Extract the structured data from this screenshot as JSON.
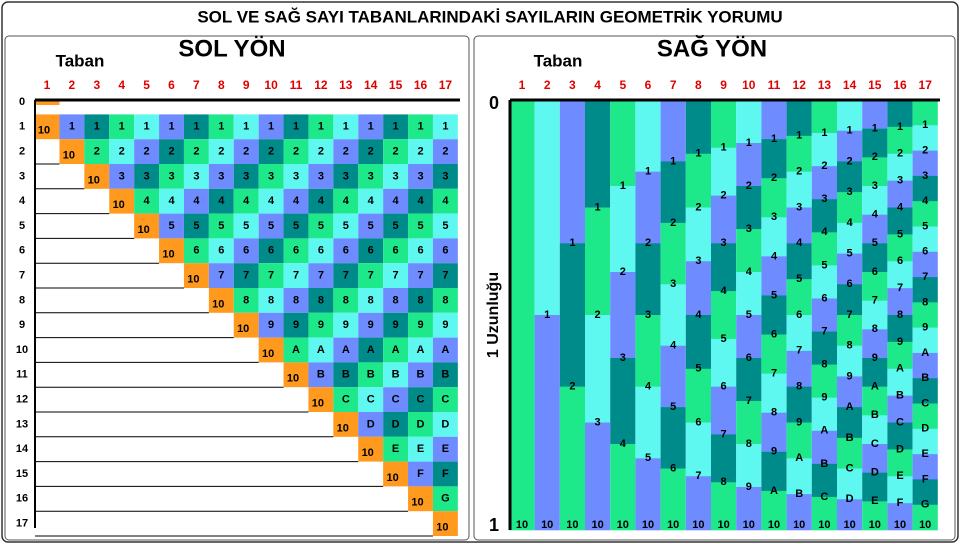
{
  "title": "SOL VE SAĞ SAYI TABANLARINDAKİ SAYILARIN GEOMETRİK YORUMU",
  "left": {
    "heading": "SOL YÖN",
    "base_label": "Taban",
    "columns": [
      "1",
      "2",
      "3",
      "4",
      "5",
      "6",
      "7",
      "8",
      "9",
      "10",
      "11",
      "12",
      "13",
      "14",
      "15",
      "16",
      "17"
    ],
    "rows": [
      {
        "label": "0",
        "cells": []
      },
      {
        "label": "1",
        "cells": [
          "10",
          "1",
          "1",
          "1",
          "1",
          "1",
          "1",
          "1",
          "1",
          "1",
          "1",
          "1",
          "1",
          "1",
          "1",
          "1",
          "1"
        ]
      },
      {
        "label": "2",
        "cells": [
          "10",
          "2",
          "2",
          "2",
          "2",
          "2",
          "2",
          "2",
          "2",
          "2",
          "2",
          "2",
          "2",
          "2",
          "2",
          "2"
        ]
      },
      {
        "label": "3",
        "cells": [
          "10",
          "3",
          "3",
          "3",
          "3",
          "3",
          "3",
          "3",
          "3",
          "3",
          "3",
          "3",
          "3",
          "3",
          "3"
        ]
      },
      {
        "label": "4",
        "cells": [
          "10",
          "4",
          "4",
          "4",
          "4",
          "4",
          "4",
          "4",
          "4",
          "4",
          "4",
          "4",
          "4",
          "4"
        ]
      },
      {
        "label": "5",
        "cells": [
          "10",
          "5",
          "5",
          "5",
          "5",
          "5",
          "5",
          "5",
          "5",
          "5",
          "5",
          "5",
          "5"
        ]
      },
      {
        "label": "6",
        "cells": [
          "10",
          "6",
          "6",
          "6",
          "6",
          "6",
          "6",
          "6",
          "6",
          "6",
          "6",
          "6"
        ]
      },
      {
        "label": "7",
        "cells": [
          "10",
          "7",
          "7",
          "7",
          "7",
          "7",
          "7",
          "7",
          "7",
          "7",
          "7"
        ]
      },
      {
        "label": "8",
        "cells": [
          "10",
          "8",
          "8",
          "8",
          "8",
          "8",
          "8",
          "8",
          "8",
          "8"
        ]
      },
      {
        "label": "9",
        "cells": [
          "10",
          "9",
          "9",
          "9",
          "9",
          "9",
          "9",
          "9",
          "9"
        ]
      },
      {
        "label": "10",
        "cells": [
          "10",
          "A",
          "A",
          "A",
          "A",
          "A",
          "A",
          "A"
        ]
      },
      {
        "label": "11",
        "cells": [
          "10",
          "B",
          "B",
          "B",
          "B",
          "B",
          "B"
        ]
      },
      {
        "label": "12",
        "cells": [
          "10",
          "C",
          "C",
          "C",
          "C",
          "C"
        ]
      },
      {
        "label": "13",
        "cells": [
          "10",
          "D",
          "D",
          "D",
          "D"
        ]
      },
      {
        "label": "14",
        "cells": [
          "10",
          "E",
          "E",
          "E"
        ]
      },
      {
        "label": "15",
        "cells": [
          "10",
          "F",
          "F"
        ]
      },
      {
        "label": "16",
        "cells": [
          "10",
          "G"
        ]
      },
      {
        "label": "17",
        "cells": [
          "10"
        ]
      }
    ]
  },
  "right": {
    "heading": "SAĞ YÖN",
    "base_label": "Taban",
    "axis_label": "1 Uzunluğu",
    "axis_top": "0",
    "axis_bottom": "1",
    "columns": [
      {
        "label": "1",
        "marks": [
          "10"
        ]
      },
      {
        "label": "2",
        "marks": [
          "1",
          "10"
        ]
      },
      {
        "label": "3",
        "marks": [
          "1",
          "2",
          "10"
        ]
      },
      {
        "label": "4",
        "marks": [
          "1",
          "2",
          "3",
          "10"
        ]
      },
      {
        "label": "5",
        "marks": [
          "1",
          "2",
          "3",
          "4",
          "10"
        ]
      },
      {
        "label": "6",
        "marks": [
          "1",
          "2",
          "3",
          "4",
          "5",
          "10"
        ]
      },
      {
        "label": "7",
        "marks": [
          "1",
          "2",
          "3",
          "4",
          "5",
          "6",
          "10"
        ]
      },
      {
        "label": "8",
        "marks": [
          "1",
          "2",
          "3",
          "4",
          "5",
          "6",
          "7",
          "10"
        ]
      },
      {
        "label": "9",
        "marks": [
          "1",
          "2",
          "3",
          "4",
          "5",
          "6",
          "7",
          "8",
          "10"
        ]
      },
      {
        "label": "10",
        "marks": [
          "1",
          "2",
          "3",
          "4",
          "5",
          "6",
          "7",
          "8",
          "9",
          "10"
        ]
      },
      {
        "label": "11",
        "marks": [
          "1",
          "2",
          "3",
          "4",
          "5",
          "6",
          "7",
          "8",
          "9",
          "A",
          "10"
        ]
      },
      {
        "label": "12",
        "marks": [
          "1",
          "2",
          "3",
          "4",
          "5",
          "6",
          "7",
          "8",
          "9",
          "A",
          "B",
          "10"
        ]
      },
      {
        "label": "13",
        "marks": [
          "1",
          "2",
          "3",
          "4",
          "5",
          "6",
          "7",
          "8",
          "9",
          "A",
          "B",
          "C",
          "10"
        ]
      },
      {
        "label": "14",
        "marks": [
          "1",
          "2",
          "3",
          "4",
          "5",
          "6",
          "7",
          "8",
          "9",
          "A",
          "B",
          "C",
          "D",
          "10"
        ]
      },
      {
        "label": "15",
        "marks": [
          "1",
          "2",
          "3",
          "4",
          "5",
          "6",
          "7",
          "8",
          "9",
          "A",
          "B",
          "C",
          "D",
          "E",
          "10"
        ]
      },
      {
        "label": "16",
        "marks": [
          "1",
          "2",
          "3",
          "4",
          "5",
          "6",
          "7",
          "8",
          "9",
          "A",
          "B",
          "C",
          "D",
          "E",
          "F",
          "10"
        ]
      },
      {
        "label": "17",
        "marks": [
          "1",
          "2",
          "3",
          "4",
          "5",
          "6",
          "7",
          "8",
          "9",
          "A",
          "B",
          "C",
          "D",
          "E",
          "F",
          "G",
          "10"
        ]
      }
    ]
  }
}
